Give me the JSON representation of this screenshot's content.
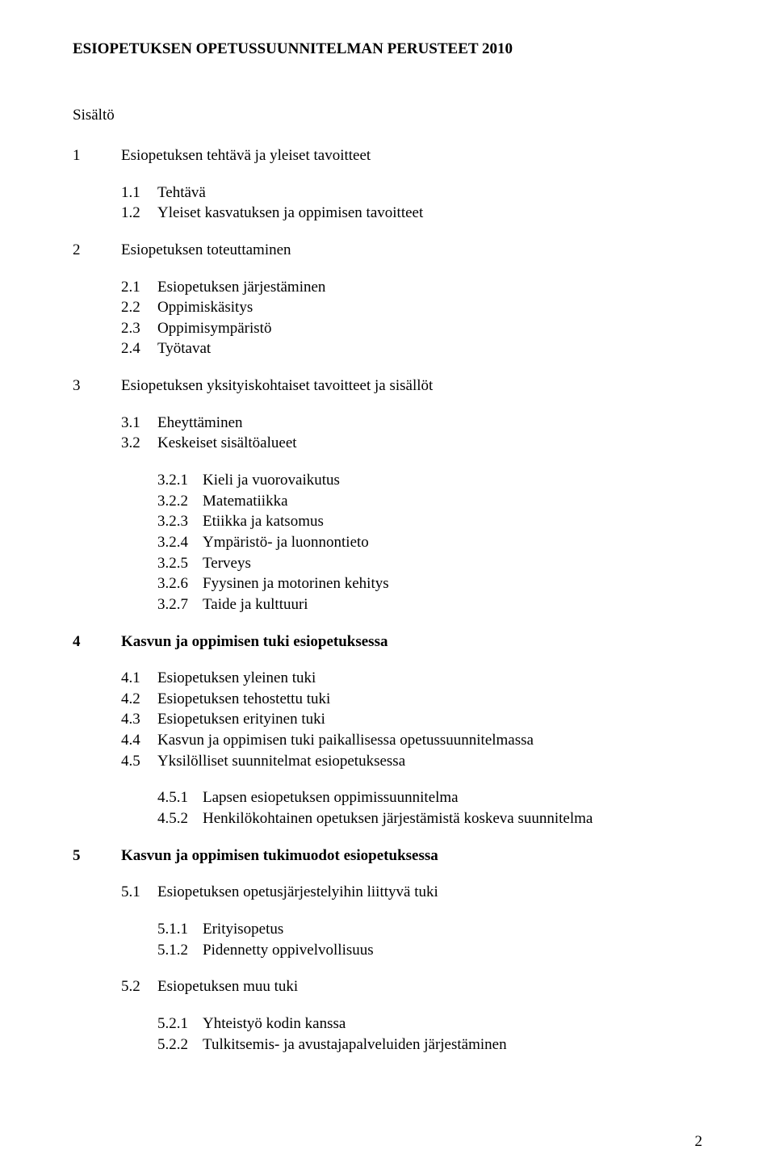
{
  "title": "ESIOPETUKSEN OPETUSSUUNNITELMAN PERUSTEET  2010",
  "toc_label": "Sisältö",
  "page_number": "2",
  "sections": {
    "s1": {
      "num": "1",
      "text": "Esiopetuksen tehtävä ja yleiset tavoitteet"
    },
    "s1_1": {
      "num": "1.1",
      "text": "Tehtävä"
    },
    "s1_2": {
      "num": "1.2",
      "text": "Yleiset kasvatuksen ja oppimisen tavoitteet"
    },
    "s2": {
      "num": "2",
      "text": "Esiopetuksen toteuttaminen"
    },
    "s2_1": {
      "num": "2.1",
      "text": "Esiopetuksen järjestäminen"
    },
    "s2_2": {
      "num": "2.2",
      "text": "Oppimiskäsitys"
    },
    "s2_3": {
      "num": "2.3",
      "text": "Oppimisympäristö"
    },
    "s2_4": {
      "num": "2.4",
      "text": "Työtavat"
    },
    "s3": {
      "num": "3",
      "text": "Esiopetuksen yksityiskohtaiset tavoitteet ja sisällöt"
    },
    "s3_1": {
      "num": "3.1",
      "text": "Eheyttäminen"
    },
    "s3_2": {
      "num": "3.2",
      "text": "Keskeiset sisältöalueet"
    },
    "s3_2_1": {
      "num": "3.2.1",
      "text": "Kieli ja vuorovaikutus"
    },
    "s3_2_2": {
      "num": "3.2.2",
      "text": "Matematiikka"
    },
    "s3_2_3": {
      "num": "3.2.3",
      "text": "Etiikka ja katsomus"
    },
    "s3_2_4": {
      "num": "3.2.4",
      "text": "Ympäristö- ja luonnontieto"
    },
    "s3_2_5": {
      "num": "3.2.5",
      "text": "Terveys"
    },
    "s3_2_6": {
      "num": "3.2.6",
      "text": "Fyysinen ja motorinen kehitys"
    },
    "s3_2_7": {
      "num": "3.2.7",
      "text": "Taide ja kulttuuri"
    },
    "s4": {
      "num": "4",
      "text": "Kasvun ja oppimisen tuki esiopetuksessa"
    },
    "s4_1": {
      "num": "4.1",
      "text": "Esiopetuksen yleinen tuki"
    },
    "s4_2": {
      "num": "4.2",
      "text": "Esiopetuksen tehostettu tuki"
    },
    "s4_3": {
      "num": "4.3",
      "text": "Esiopetuksen erityinen tuki"
    },
    "s4_4": {
      "num": "4.4",
      "text": "Kasvun ja oppimisen tuki paikallisessa opetussuunnitelmassa"
    },
    "s4_5": {
      "num": "4.5",
      "text": "Yksilölliset suunnitelmat esiopetuksessa"
    },
    "s4_5_1": {
      "num": "4.5.1",
      "text": "Lapsen esiopetuksen oppimissuunnitelma"
    },
    "s4_5_2": {
      "num": "4.5.2",
      "text": "Henkilökohtainen opetuksen järjestämistä koskeva suunnitelma"
    },
    "s5": {
      "num": "5",
      "text": "Kasvun ja oppimisen tukimuodot esiopetuksessa"
    },
    "s5_1": {
      "num": "5.1",
      "text": "Esiopetuksen opetusjärjestelyihin liittyvä tuki"
    },
    "s5_1_1": {
      "num": "5.1.1",
      "text": "Erityisopetus"
    },
    "s5_1_2": {
      "num": "5.1.2",
      "text": "Pidennetty oppivelvollisuus"
    },
    "s5_2": {
      "num": "5.2",
      "text": "Esiopetuksen muu tuki"
    },
    "s5_2_1": {
      "num": "5.2.1",
      "text": "Yhteistyö kodin kanssa"
    },
    "s5_2_2": {
      "num": "5.2.2",
      "text": "Tulkitsemis- ja avustajapalveluiden järjestäminen"
    }
  }
}
